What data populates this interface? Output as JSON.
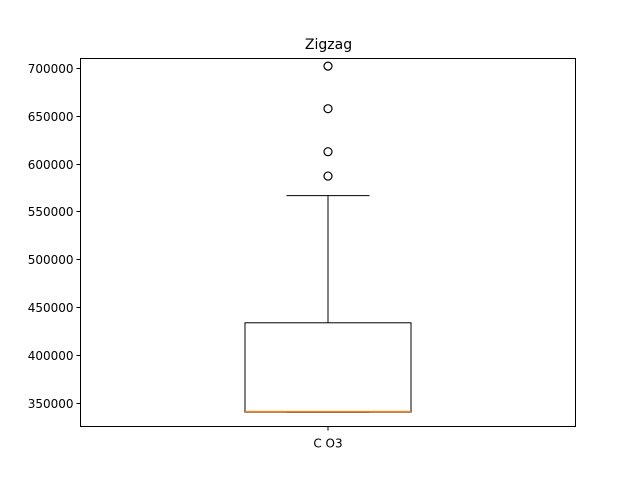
{
  "chart_data": {
    "type": "box",
    "title": "Zigzag",
    "xlabel": "",
    "ylabel": "",
    "categories": [
      "C O3"
    ],
    "ylim": [
      325000,
      710000
    ],
    "y_ticks": [
      350000,
      400000,
      450000,
      500000,
      550000,
      600000,
      650000,
      700000
    ],
    "y_tick_labels": [
      "350000",
      "400000",
      "450000",
      "500000",
      "550000",
      "600000",
      "650000",
      "700000"
    ],
    "boxes": [
      {
        "category": "C O3",
        "whisker_low": 340000,
        "q1": 340000,
        "median": 340500,
        "q3": 433500,
        "whisker_high": 566500,
        "fliers": [
          587000,
          612500,
          657500,
          702000
        ]
      }
    ],
    "grid": false,
    "colors": {
      "box": "#000000",
      "median": "#ff7f0e",
      "flier_edge": "#000000"
    }
  }
}
